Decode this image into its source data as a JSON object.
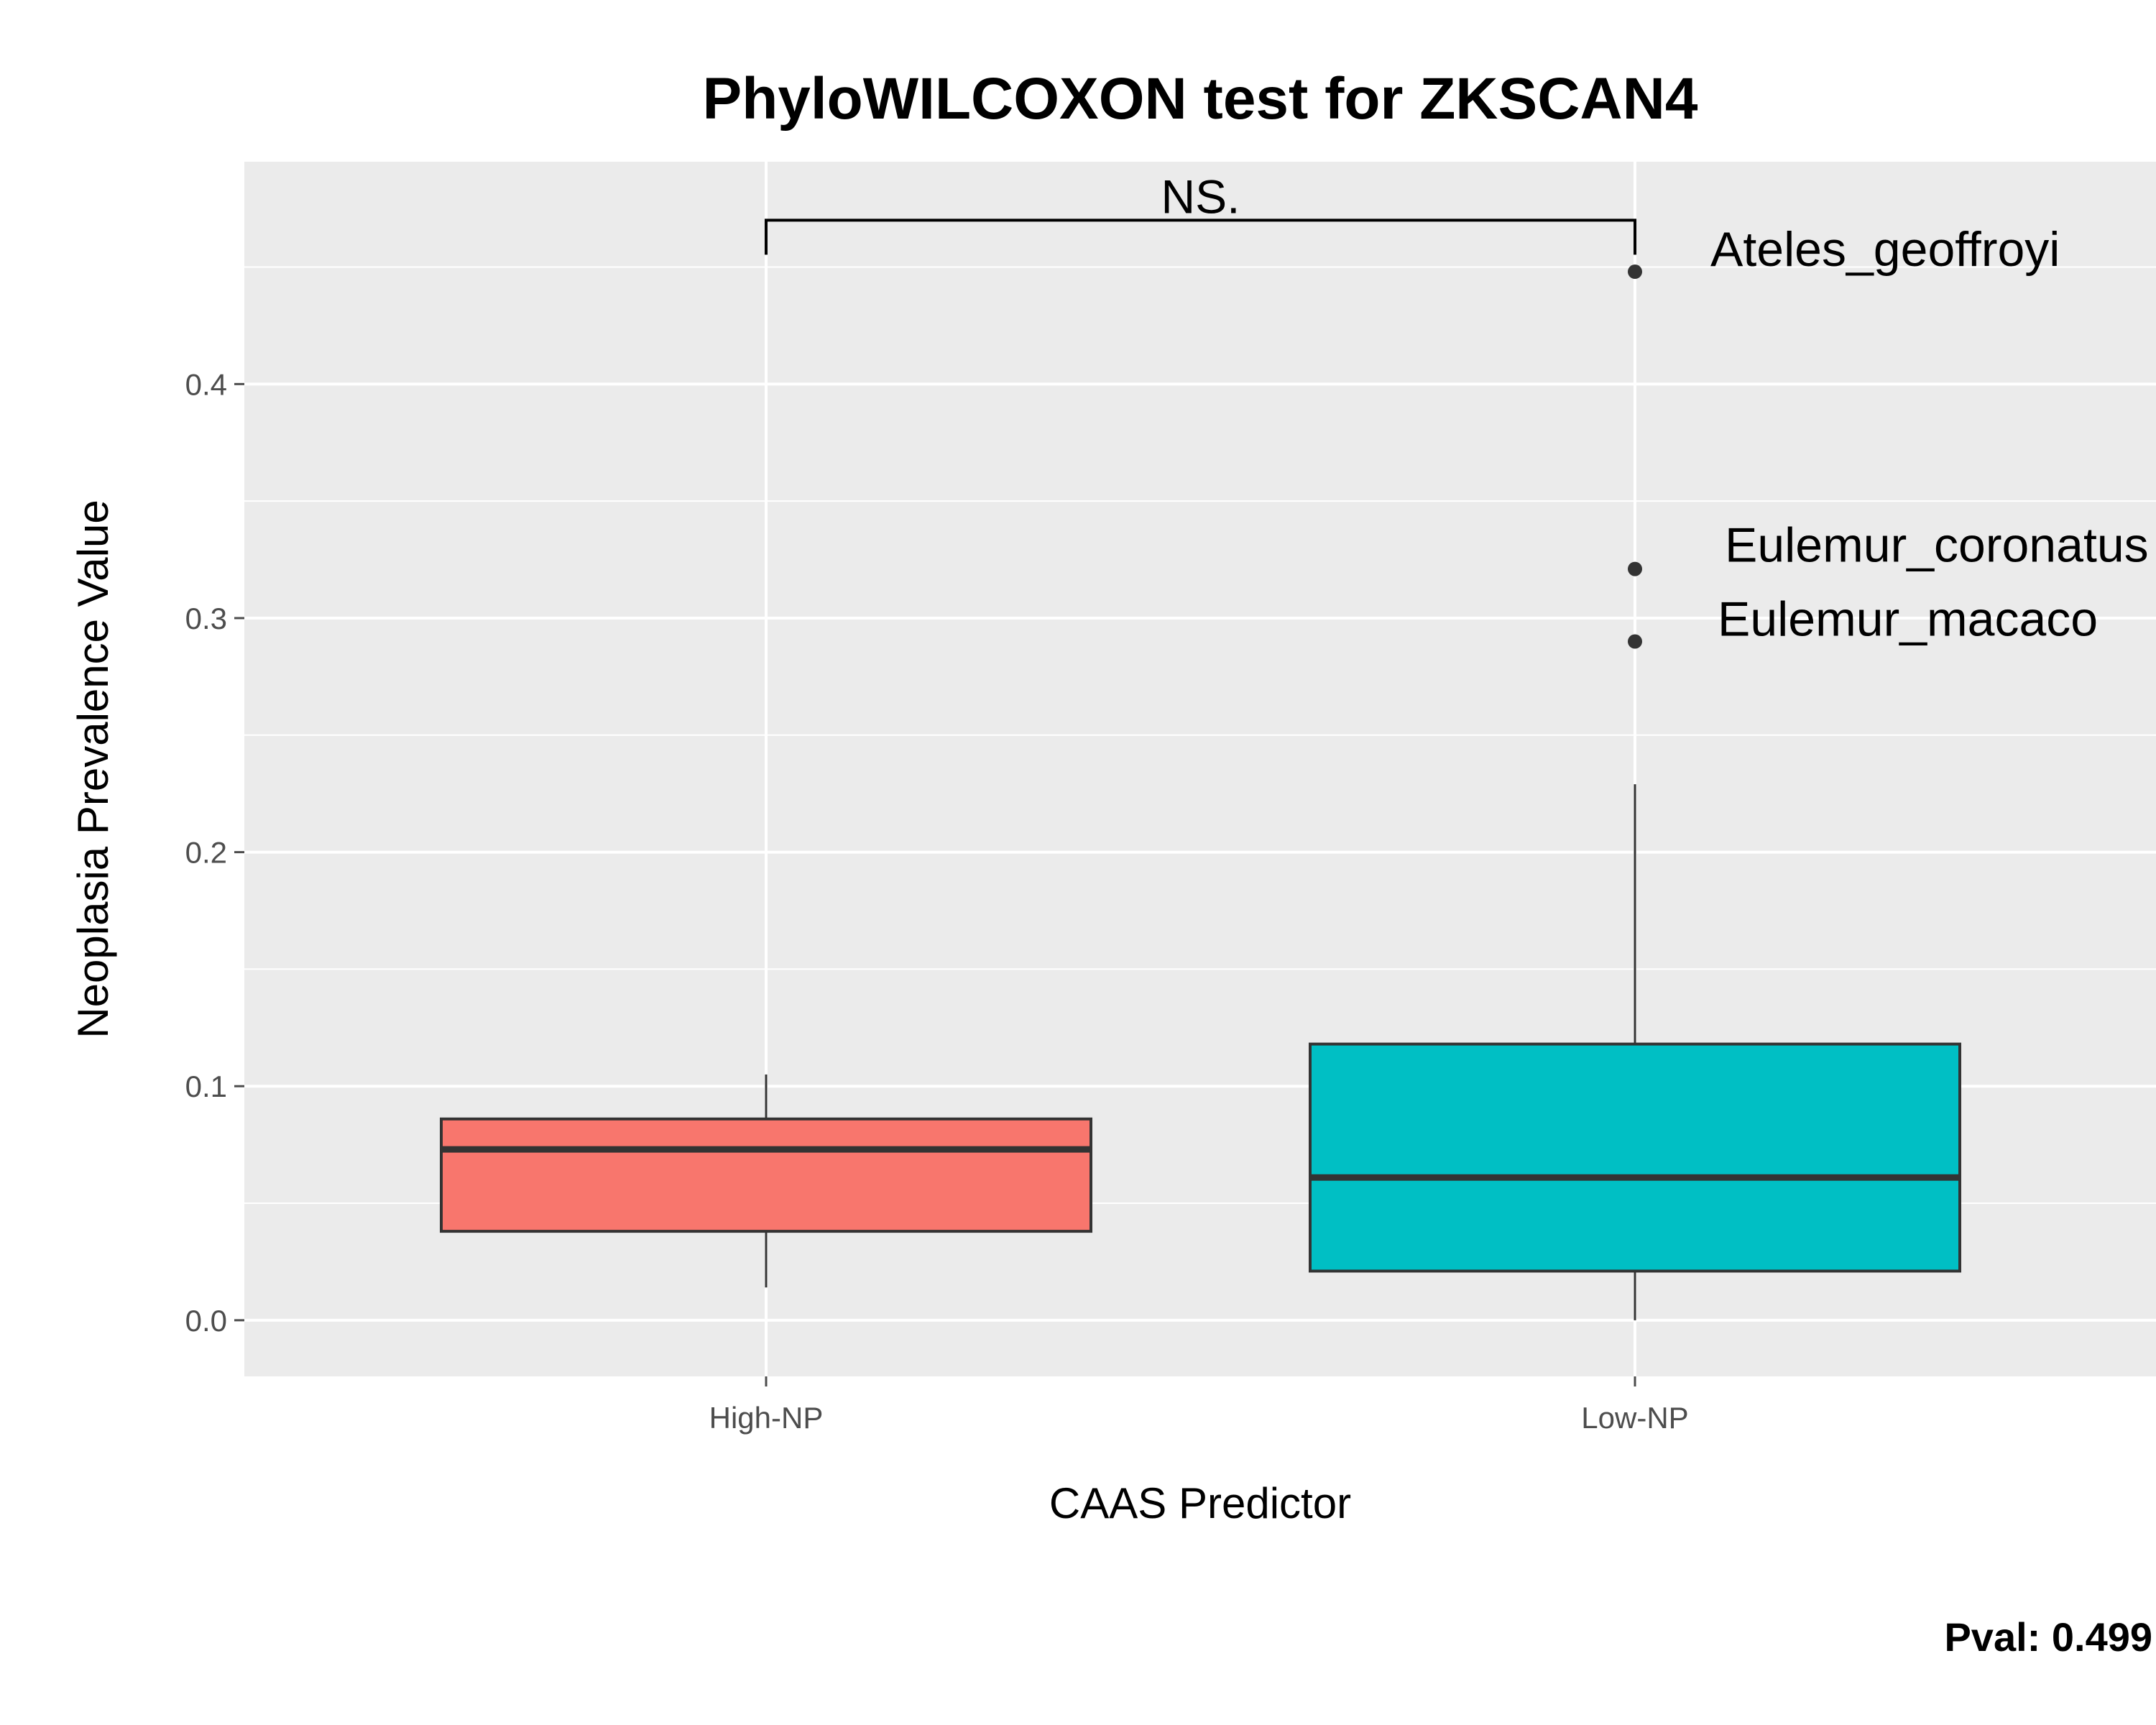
{
  "chart_data": {
    "type": "boxplot",
    "title": "PhyloWILCOXON test for ZKSCAN4",
    "xlabel": "CAAS Predictor",
    "ylabel": "Neoplasia Prevalence Value",
    "categories": [
      "High-NP",
      "Low-NP"
    ],
    "ylim": [
      -0.024,
      0.495
    ],
    "yticks": [
      0.0,
      0.1,
      0.2,
      0.3,
      0.4
    ],
    "ytick_labels": [
      "0.0",
      "0.1",
      "0.2",
      "0.3",
      "0.4"
    ],
    "grid": true,
    "boxes": [
      {
        "category": "High-NP",
        "whisker_low": 0.014,
        "q1": 0.038,
        "median": 0.073,
        "q3": 0.086,
        "whisker_high": 0.105,
        "color": "#F8766D"
      },
      {
        "category": "Low-NP",
        "whisker_low": 0.0,
        "q1": 0.021,
        "median": 0.061,
        "q3": 0.118,
        "whisker_high": 0.229,
        "color": "#00BFC4"
      }
    ],
    "outliers": [
      {
        "category": "Low-NP",
        "y": 0.448,
        "label": "Ateles_geoffroyi"
      },
      {
        "category": "Low-NP",
        "y": 0.321,
        "label": "Eulemur_coronatus"
      },
      {
        "category": "Low-NP",
        "y": 0.29,
        "label": "Eulemur_macaco"
      }
    ],
    "significance": {
      "label": "NS.",
      "y": 0.47
    },
    "pvalue_text": "Pval:  0.499",
    "colors": {
      "panel_bg": "#EBEBEB",
      "grid": "#FFFFFF",
      "box_line": "#333333",
      "tick": "#4D4D4D"
    }
  }
}
